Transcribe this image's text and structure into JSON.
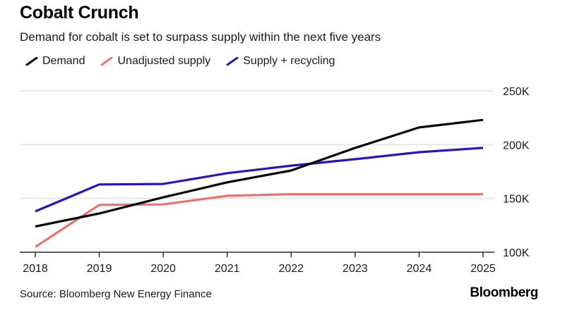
{
  "header": {
    "title": "Cobalt Crunch",
    "subtitle": "Demand for cobalt is set to surpass supply within the next five years"
  },
  "footer": {
    "source": "Source: Bloomberg New Energy Finance",
    "brand": "Bloomberg"
  },
  "chart_data": {
    "type": "line",
    "title": "Cobalt Crunch",
    "subtitle": "Demand for cobalt is set to surpass supply within the next five years",
    "xlabel": "",
    "ylabel": "",
    "x": [
      "2018",
      "2019",
      "2020",
      "2021",
      "2022",
      "2023",
      "2024",
      "2025"
    ],
    "ylim": [
      100000,
      250000
    ],
    "yticks": [
      100000,
      150000,
      200000,
      250000
    ],
    "ytick_labels": [
      "100K",
      "150K",
      "200K",
      "250K"
    ],
    "grid": true,
    "legend_position": "top-left",
    "series": [
      {
        "name": "Demand",
        "color": "#000000",
        "values": [
          124000,
          136000,
          151000,
          165000,
          176000,
          197000,
          216000,
          223000
        ]
      },
      {
        "name": "Unadjusted supply",
        "color": "#f07070",
        "values": [
          105000,
          144000,
          144500,
          152500,
          154000,
          154000,
          154000,
          154000
        ]
      },
      {
        "name": "Supply + recycling",
        "color": "#2c11c6",
        "values": [
          138000,
          163000,
          163500,
          173500,
          180500,
          186500,
          193000,
          197000
        ]
      }
    ]
  }
}
